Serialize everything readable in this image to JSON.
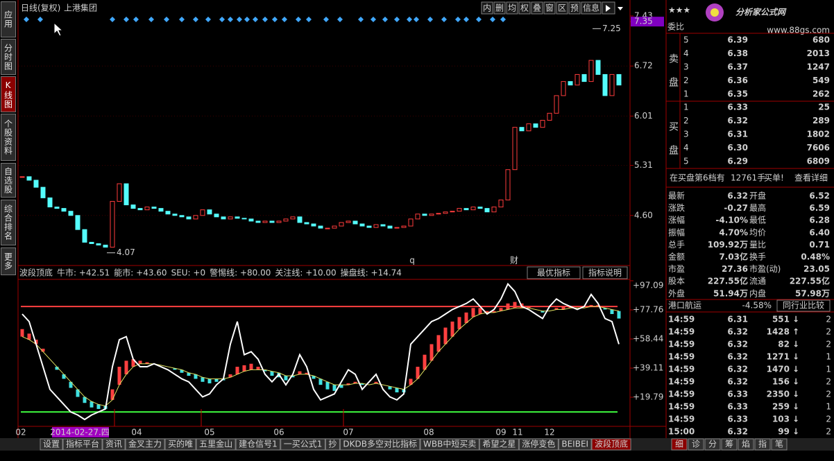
{
  "sidebar_tabs": [
    "应用",
    "分时图",
    "K线图",
    "个股资料",
    "自选股",
    "综合排名",
    "更多"
  ],
  "header": {
    "period": "日线(复权)",
    "stock": "上港集团"
  },
  "toolbar": [
    "内",
    "删",
    "均",
    "权",
    "叠",
    "窗",
    "区",
    "预",
    "信息"
  ],
  "chart_data": [
    {
      "type": "candlestick",
      "ylim": [
        3.89,
        7.44
      ],
      "yticks": [
        7.43,
        7.35,
        6.72,
        6.01,
        5.31,
        {
          "value": 4.6,
          "label": "4.60"
        }
      ],
      "closes": [
        5.15,
        5.1,
        5.0,
        4.85,
        4.72,
        4.7,
        4.66,
        4.6,
        4.4,
        4.22,
        4.2,
        4.18,
        4.15,
        4.8,
        5.05,
        4.75,
        4.7,
        4.68,
        4.72,
        4.7,
        4.66,
        4.62,
        4.6,
        4.58,
        4.55,
        4.6,
        4.68,
        4.62,
        4.58,
        4.55,
        4.58,
        4.56,
        4.55,
        4.52,
        4.5,
        4.52,
        4.5,
        4.52,
        4.55,
        4.58,
        4.5,
        4.48,
        4.45,
        4.42,
        4.42,
        4.45,
        4.5,
        4.52,
        4.48,
        4.45,
        4.43,
        4.47,
        4.45,
        4.42,
        4.43,
        4.45,
        4.55,
        4.62,
        4.6,
        4.62,
        4.63,
        4.65,
        4.66,
        4.7,
        4.68,
        4.72,
        4.7,
        4.65,
        4.72,
        4.82,
        5.25,
        5.85,
        5.8,
        5.9,
        5.85,
        5.95,
        6.05,
        6.3,
        6.5,
        6.45,
        6.6,
        6.5,
        6.8,
        6.6,
        6.3,
        6.6,
        6.45
      ],
      "up_color": "#ff3c3c",
      "down_color": "#54fcfc",
      "annotations": [
        7.25,
        4.07
      ],
      "markers": [
        "q",
        "财"
      ]
    },
    {
      "type": "line",
      "title": "波段顶底",
      "ylim": [
        0.46,
        98.0
      ],
      "yticks": [
        {
          "value": 97.09,
          "label": "+97.09"
        },
        {
          "value": 77.76,
          "label": "+77.76"
        },
        {
          "value": 58.44,
          "label": "+58.44"
        },
        {
          "value": 39.11,
          "label": "+39.11"
        },
        {
          "value": 19.79,
          "label": "+19.79"
        }
      ],
      "readouts": [
        {
          "label": "牛市: +42.51",
          "value": 42.51,
          "color": "#e8e8e8"
        },
        {
          "label": "能市: +43.60",
          "value": 43.6,
          "color": "#f0f060"
        },
        {
          "label": "SEU: +0",
          "value": 0,
          "color": "#40ff40"
        },
        {
          "label": "警惕线: +80.00",
          "value": 80,
          "color": "#ff4040",
          "line": true
        },
        {
          "label": "关注线: +10.00",
          "value": 10,
          "color": "#40ff40",
          "line": true
        },
        {
          "label": "操盘线: +14.74",
          "value": 14.74,
          "color": "#ffffff"
        }
      ],
      "buttons": [
        "最优指标",
        "指标说明"
      ],
      "white": [
        75,
        70,
        55,
        40,
        25,
        20,
        15,
        10,
        8,
        5,
        8,
        10,
        12,
        40,
        58,
        60,
        45,
        40,
        40,
        42,
        40,
        38,
        35,
        32,
        30,
        25,
        20,
        22,
        28,
        32,
        55,
        70,
        48,
        50,
        45,
        35,
        30,
        35,
        28,
        35,
        48,
        40,
        25,
        18,
        20,
        22,
        30,
        38,
        35,
        25,
        30,
        35,
        25,
        20,
        18,
        22,
        55,
        60,
        65,
        70,
        72,
        75,
        78,
        80,
        82,
        85,
        80,
        75,
        78,
        85,
        95,
        90,
        80,
        78,
        75,
        72,
        80,
        85,
        82,
        80,
        78,
        80,
        88,
        82,
        72,
        70,
        55
      ],
      "bars": [
        65,
        62,
        58,
        52,
        45,
        38,
        32,
        26,
        20,
        16,
        13,
        12,
        12,
        25,
        40,
        44,
        45,
        44,
        43,
        42,
        41,
        40,
        38,
        36,
        34,
        32,
        30,
        29,
        30,
        31,
        35,
        40,
        41,
        42,
        40,
        37,
        34,
        33,
        31,
        33,
        37,
        36,
        32,
        28,
        25,
        24,
        26,
        29,
        30,
        28,
        28,
        30,
        28,
        25,
        23,
        23,
        32,
        40,
        48,
        55,
        61,
        66,
        70,
        73,
        76,
        79,
        79,
        77,
        77,
        79,
        82,
        83,
        82,
        80,
        78,
        76,
        77,
        79,
        80,
        80,
        79,
        79,
        81,
        81,
        78,
        75,
        72
      ],
      "yellow": [
        60,
        58,
        55,
        50,
        45,
        40,
        35,
        30,
        25,
        20,
        17,
        15,
        14,
        18,
        28,
        35,
        40,
        42,
        42,
        42,
        41,
        40,
        39,
        38,
        36,
        35,
        33,
        32,
        32,
        32,
        33,
        35,
        37,
        38,
        38,
        38,
        37,
        36,
        34,
        34,
        35,
        35,
        34,
        32,
        30,
        28,
        28,
        28,
        29,
        29,
        28,
        29,
        28,
        27,
        26,
        25,
        28,
        32,
        38,
        44,
        50,
        55,
        60,
        65,
        69,
        73,
        75,
        76,
        76,
        77,
        78,
        79,
        79,
        79,
        78,
        77,
        77,
        78,
        78,
        79,
        79,
        79,
        80,
        80,
        79,
        78,
        77
      ],
      "white_color": "#ffffff",
      "yellow_color": "#e0e060",
      "up_color": "#ff4040",
      "down_color": "#40e0e0"
    }
  ],
  "x_axis": [
    "02",
    "2014-02-27.四",
    "04",
    "05",
    "06",
    "07",
    "08",
    "09",
    "11",
    "12"
  ],
  "bottom_tabs": [
    "设置",
    "指标平台",
    "资讯",
    "金叉主力",
    "买的唯",
    "五里金山",
    "建仓信号1",
    "一买公式1",
    "抄",
    "DKDB多空对比指标",
    "WBB中短买卖",
    "希望之星",
    "涨停变色",
    "BEIBEI",
    "波段顶底"
  ],
  "side_tabs": [
    "细",
    "诊",
    "分",
    "筹",
    "焰",
    "指",
    "笔"
  ],
  "quote": {
    "rating": "★★★",
    "logo": "分析家公式网",
    "url": "www.88gs.com",
    "webi": "委比",
    "sell_label": "卖盘",
    "buy_label": "买盘",
    "sell": [
      {
        "level": "5",
        "price": "6.39",
        "vol": "680"
      },
      {
        "level": "4",
        "price": "6.38",
        "vol": "2013"
      },
      {
        "level": "3",
        "price": "6.37",
        "vol": "1247"
      },
      {
        "level": "2",
        "price": "6.36",
        "vol": "549"
      },
      {
        "level": "1",
        "price": "6.35",
        "vol": "262"
      }
    ],
    "buy": [
      {
        "level": "1",
        "price": "6.33",
        "vol": "25"
      },
      {
        "level": "2",
        "price": "6.32",
        "vol": "289"
      },
      {
        "level": "3",
        "price": "6.31",
        "vol": "1802"
      },
      {
        "level": "4",
        "price": "6.30",
        "vol": "7606"
      },
      {
        "level": "5",
        "price": "6.29",
        "vol": "6809"
      }
    ],
    "notice": [
      "在买盘第6档有",
      "12761手",
      "买单!",
      "查看详细"
    ],
    "stats": [
      [
        {
          "k": "最新",
          "v": "6.32",
          "c": "#30ff30"
        },
        {
          "k": "开盘",
          "v": "6.52",
          "c": "#ff4040"
        }
      ],
      [
        {
          "k": "涨跌",
          "v": "-0.27",
          "c": "#30ff30"
        },
        {
          "k": "最高",
          "v": "6.59",
          "c": "#ffffff"
        }
      ],
      [
        {
          "k": "涨幅",
          "v": "-4.10%",
          "c": "#30ff30"
        },
        {
          "k": "最低",
          "v": "6.28",
          "c": "#30ff30"
        }
      ],
      [
        {
          "k": "振幅",
          "v": "4.70%",
          "c": "#40e0ff"
        },
        {
          "k": "均价",
          "v": "6.40",
          "c": "#ff4040"
        }
      ],
      [
        {
          "k": "总手",
          "v": "109.92万",
          "c": "#40e0ff"
        },
        {
          "k": "量比",
          "v": "0.71",
          "c": "#f0f040"
        }
      ],
      [
        {
          "k": "金额",
          "v": "7.03亿",
          "c": "#40e0ff"
        },
        {
          "k": "换手",
          "v": "0.48%",
          "c": "#40e0ff"
        }
      ],
      [
        {
          "k": "市盈",
          "v": "27.36",
          "c": "#ffffff"
        },
        {
          "k": "市盈(动)",
          "v": "23.05",
          "c": "#ffffff"
        }
      ],
      [
        {
          "k": "股本",
          "v": "227.55亿",
          "c": "#40e0ff"
        },
        {
          "k": "流通",
          "v": "227.55亿",
          "c": "#40e0ff"
        }
      ],
      [
        {
          "k": "外盘",
          "v": "51.94万",
          "c": "#ff4040"
        },
        {
          "k": "内盘",
          "v": "57.98万",
          "c": "#30ff30"
        }
      ]
    ],
    "industry": [
      "港口航运",
      "-4.58%",
      "同行业比较"
    ],
    "ticks": [
      {
        "time": "14:59",
        "price": "6.31",
        "vol": "551",
        "arrow": "↓",
        "color": "#30ff30",
        "n": "2"
      },
      {
        "time": "14:59",
        "price": "6.32",
        "vol": "1428",
        "arrow": "↑",
        "color": "#ff4040",
        "n": "2"
      },
      {
        "time": "14:59",
        "price": "6.32",
        "vol": "82",
        "arrow": "↓",
        "color": "#30ff30",
        "n": "2"
      },
      {
        "time": "14:59",
        "price": "6.32",
        "vol": "1271",
        "arrow": "↓",
        "color": "#30ff30",
        "n": "1"
      },
      {
        "time": "14:59",
        "price": "6.32",
        "vol": "1470",
        "arrow": "↓",
        "color": "#30ff30",
        "n": "1"
      },
      {
        "time": "14:59",
        "price": "6.32",
        "vol": "156",
        "arrow": "↓",
        "color": "#30ff30",
        "n": "2"
      },
      {
        "time": "14:59",
        "price": "6.33",
        "vol": "2350",
        "arrow": "↓",
        "color": "#30ff30",
        "n": "2"
      },
      {
        "time": "14:59",
        "price": "6.33",
        "vol": "259",
        "arrow": "↓",
        "color": "#30ff30",
        "n": "1"
      },
      {
        "time": "14:59",
        "price": "6.33",
        "vol": "103",
        "arrow": "↓",
        "color": "#30ff30",
        "n": "2"
      },
      {
        "time": "15:00",
        "price": "6.32",
        "vol": "99",
        "arrow": "↓",
        "color": "#30ff30",
        "n": "2"
      }
    ]
  }
}
